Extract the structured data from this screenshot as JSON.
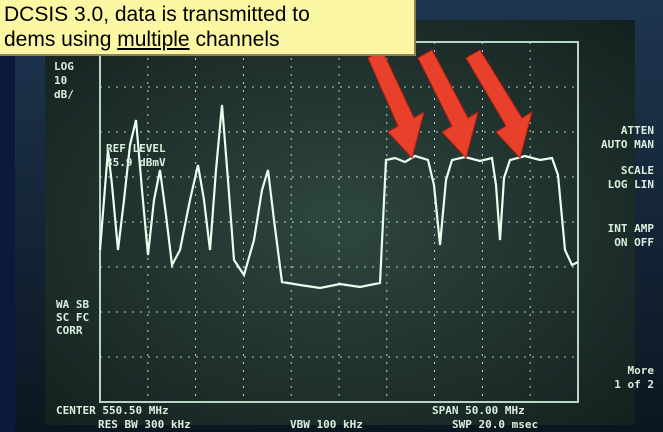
{
  "callout": {
    "line1": "DCSIS 3.0, data is transmitted to",
    "line2_start": "dems using",
    "line2_underlined": "multiple",
    "line2_end": "channels"
  },
  "screen": {
    "log": "LOG",
    "scale_value": "10",
    "scale_unit": "dB/",
    "ref_level": "REF LEVEL",
    "ref_value": "35.9 dBmV",
    "left_notes": [
      "WA SB",
      "SC FC",
      "CORR"
    ],
    "center": "CENTER 550.50 MHz",
    "res_bw": "RES BW 300 kHz",
    "vbw": "VBW 100 kHz",
    "span": "SPAN 50.00 MHz",
    "sweep": "SWP 20.0 msec",
    "menu": [
      "ATTEN",
      "AUTO MAN",
      "SCALE",
      "LOG LIN",
      "INT AMP",
      "ON OFF",
      "More",
      "1 of 2"
    ]
  }
}
